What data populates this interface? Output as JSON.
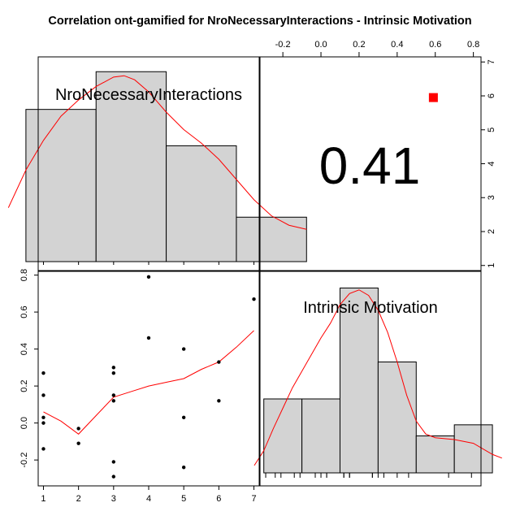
{
  "title": "Correlation ont-gamified for NroNecessaryInteractions - Intrinsic Motivation",
  "chart_data": {
    "type": "scatter",
    "title": "Correlation ont-gamified for NroNecessaryInteractions - Intrinsic Motivation",
    "variables": [
      "NroNecessaryInteractions",
      "Intrinsic Motivation"
    ],
    "correlation": {
      "value": 0.41,
      "label": "0.41",
      "significance_marker": {
        "shape": "square",
        "color": "#ff0000",
        "x": 0.59,
        "y": 5.95
      }
    },
    "histogram_x": {
      "variable": "NroNecessaryInteractions",
      "bins": [
        [
          0.5,
          2.5
        ],
        [
          2.5,
          4.5
        ],
        [
          4.5,
          6.5
        ],
        [
          6.5,
          8.5
        ]
      ],
      "heights": [
        5.65,
        7.05,
        4.3,
        1.65
      ],
      "rug": [
        1,
        2,
        3,
        4,
        5,
        6,
        7
      ],
      "density": [
        [
          0.0,
          2.0
        ],
        [
          0.5,
          3.4
        ],
        [
          1.0,
          4.5
        ],
        [
          1.5,
          5.4
        ],
        [
          2.0,
          6.0
        ],
        [
          2.5,
          6.5
        ],
        [
          3.0,
          6.85
        ],
        [
          3.3,
          6.9
        ],
        [
          3.6,
          6.75
        ],
        [
          4.0,
          6.3
        ],
        [
          4.5,
          5.55
        ],
        [
          5.0,
          4.9
        ],
        [
          5.5,
          4.4
        ],
        [
          6.0,
          3.8
        ],
        [
          6.5,
          3.05
        ],
        [
          7.0,
          2.3
        ],
        [
          7.5,
          1.7
        ],
        [
          8.0,
          1.35
        ],
        [
          8.5,
          1.2
        ]
      ]
    },
    "histogram_y": {
      "variable": "Intrinsic Motivation",
      "bins": [
        [
          -0.3,
          -0.1
        ],
        [
          -0.1,
          0.1
        ],
        [
          0.1,
          0.3
        ],
        [
          0.3,
          0.5
        ],
        [
          0.5,
          0.7
        ],
        [
          0.7,
          0.9
        ]
      ],
      "heights": [
        2,
        2,
        5,
        3,
        1,
        1.3
      ],
      "rug": [
        -0.29,
        -0.24,
        -0.21,
        -0.14,
        -0.11,
        -0.03,
        0.0,
        0.03,
        0.03,
        0.12,
        0.12,
        0.15,
        0.15,
        0.27,
        0.27,
        0.3,
        0.33,
        0.4,
        0.46,
        0.67,
        0.79
      ],
      "density": [
        [
          -0.35,
          0.2
        ],
        [
          -0.3,
          0.6
        ],
        [
          -0.25,
          1.2
        ],
        [
          -0.2,
          1.75
        ],
        [
          -0.15,
          2.3
        ],
        [
          -0.1,
          2.75
        ],
        [
          -0.05,
          3.2
        ],
        [
          0.0,
          3.65
        ],
        [
          0.05,
          4.05
        ],
        [
          0.1,
          4.55
        ],
        [
          0.15,
          4.85
        ],
        [
          0.2,
          4.95
        ],
        [
          0.25,
          4.8
        ],
        [
          0.3,
          4.4
        ],
        [
          0.35,
          3.8
        ],
        [
          0.4,
          3.0
        ],
        [
          0.45,
          2.1
        ],
        [
          0.5,
          1.4
        ],
        [
          0.55,
          1.05
        ],
        [
          0.6,
          0.95
        ],
        [
          0.7,
          0.9
        ],
        [
          0.8,
          0.8
        ],
        [
          0.9,
          0.5
        ],
        [
          0.95,
          0.4
        ]
      ]
    },
    "scatter": {
      "points": [
        [
          1,
          0.27
        ],
        [
          1,
          0.15
        ],
        [
          1,
          0.03
        ],
        [
          1,
          0.0
        ],
        [
          1,
          -0.14
        ],
        [
          2,
          -0.03
        ],
        [
          2,
          -0.11
        ],
        [
          3,
          0.3
        ],
        [
          3,
          0.27
        ],
        [
          3,
          0.15
        ],
        [
          3,
          0.12
        ],
        [
          3,
          -0.21
        ],
        [
          3,
          -0.29
        ],
        [
          4,
          0.79
        ],
        [
          4,
          0.46
        ],
        [
          5,
          0.4
        ],
        [
          5,
          0.03
        ],
        [
          5,
          -0.24
        ],
        [
          6,
          0.33
        ],
        [
          6,
          0.12
        ],
        [
          7,
          0.67
        ]
      ],
      "smooth": [
        [
          1,
          0.06
        ],
        [
          1.5,
          0.01
        ],
        [
          2,
          -0.06
        ],
        [
          2.5,
          0.04
        ],
        [
          3,
          0.14
        ],
        [
          3.5,
          0.17
        ],
        [
          4,
          0.2
        ],
        [
          4.5,
          0.22
        ],
        [
          5,
          0.24
        ],
        [
          5.5,
          0.29
        ],
        [
          6,
          0.33
        ],
        [
          6.5,
          0.41
        ],
        [
          7,
          0.5
        ]
      ],
      "xlim": [
        0.85,
        7.15
      ],
      "ylim": [
        -0.34,
        0.82
      ]
    },
    "axes": {
      "bottom_ticks": [
        1,
        2,
        3,
        4,
        5,
        6,
        7
      ],
      "left_ticks": [
        -0.2,
        0.0,
        0.2,
        0.4,
        0.6,
        0.8
      ],
      "left_tick_labels": [
        "-0.2",
        "0.0",
        "0.2",
        "0.4",
        "0.6",
        "0.8"
      ],
      "top_ticks": [
        -0.2,
        0.0,
        0.2,
        0.4,
        0.6,
        0.8
      ],
      "top_tick_labels": [
        "-0.2",
        "0.0",
        "0.2",
        "0.4",
        "0.6",
        "0.8"
      ],
      "top_range": [
        -0.32,
        0.84
      ],
      "right_ticks": [
        1,
        2,
        3,
        4,
        5,
        6,
        7
      ],
      "right_range": [
        0.85,
        7.15
      ]
    },
    "colors": {
      "bar_fill": "#d3d3d3",
      "density": "#ff0000",
      "smooth": "#ff0000",
      "points": "#000000",
      "marker": "#ff0000"
    }
  }
}
